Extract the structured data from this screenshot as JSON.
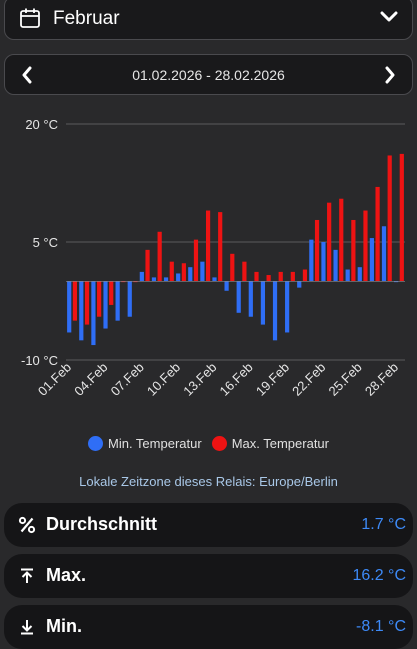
{
  "month_select": {
    "label": "Februar",
    "icon": "calendar-icon",
    "dropdown_icon": "chevron-down-icon"
  },
  "range_bar": {
    "text": "01.02.2026 - 28.02.2026",
    "prev_icon": "chevron-left-icon",
    "next_icon": "chevron-right-icon"
  },
  "chart_data": {
    "type": "bar",
    "categories": [
      "01.Feb",
      "02.Feb",
      "03.Feb",
      "04.Feb",
      "05.Feb",
      "06.Feb",
      "07.Feb",
      "08.Feb",
      "09.Feb",
      "10.Feb",
      "11.Feb",
      "12.Feb",
      "13.Feb",
      "14.Feb",
      "15.Feb",
      "16.Feb",
      "17.Feb",
      "18.Feb",
      "19.Feb",
      "20.Feb",
      "21.Feb",
      "22.Feb",
      "23.Feb",
      "24.Feb",
      "25.Feb",
      "26.Feb",
      "27.Feb",
      "28.Feb"
    ],
    "tick_labels": [
      "01.Feb",
      "04.Feb",
      "07.Feb",
      "10.Feb",
      "13.Feb",
      "16.Feb",
      "19.Feb",
      "22.Feb",
      "25.Feb",
      "28.Feb"
    ],
    "series": [
      {
        "name": "Min. Temperatur",
        "color": "#2f6ef6",
        "values": [
          -6.5,
          -7.5,
          -8.1,
          -6,
          -5,
          -4.5,
          1.2,
          0.5,
          0.5,
          1,
          1.8,
          2.5,
          0.5,
          -1.2,
          -4,
          -4.5,
          -5.5,
          -7.5,
          -6.5,
          -0.8,
          5.3,
          5,
          4,
          1.5,
          1.8,
          5.5,
          7,
          0
        ]
      },
      {
        "name": "Max. Temperatur",
        "color": "#ee1313",
        "values": [
          -5,
          -5.5,
          -4.5,
          -3,
          0,
          0,
          4,
          6.3,
          2.5,
          2.3,
          5.3,
          9,
          8.8,
          3.5,
          2.5,
          1.2,
          0.8,
          1.2,
          1.2,
          1.5,
          7.8,
          10,
          10.5,
          7.8,
          9,
          12,
          16,
          16.2
        ]
      }
    ],
    "ylim": [
      -10,
      20
    ],
    "y_ticks": [
      {
        "value": 20,
        "label": "20 °C"
      },
      {
        "value": 5,
        "label": "5 °C"
      },
      {
        "value": -10,
        "label": "-10 °C"
      }
    ],
    "grid": true,
    "legend": "bottom-center"
  },
  "legend": {
    "min_label": "Min. Temperatur",
    "max_label": "Max. Temperatur",
    "min_color": "#2f6ef6",
    "max_color": "#ee1313"
  },
  "timezone_text": "Lokale Zeitzone dieses Relais: Europe/Berlin",
  "stats": [
    {
      "icon": "percent-icon",
      "label": "Durchschnitt",
      "value": "1.7 °C"
    },
    {
      "icon": "arrow-up-to-line-icon",
      "label": "Max.",
      "value": "16.2 °C"
    },
    {
      "icon": "arrow-down-to-line-icon",
      "label": "Min.",
      "value": "-8.1 °C"
    }
  ]
}
